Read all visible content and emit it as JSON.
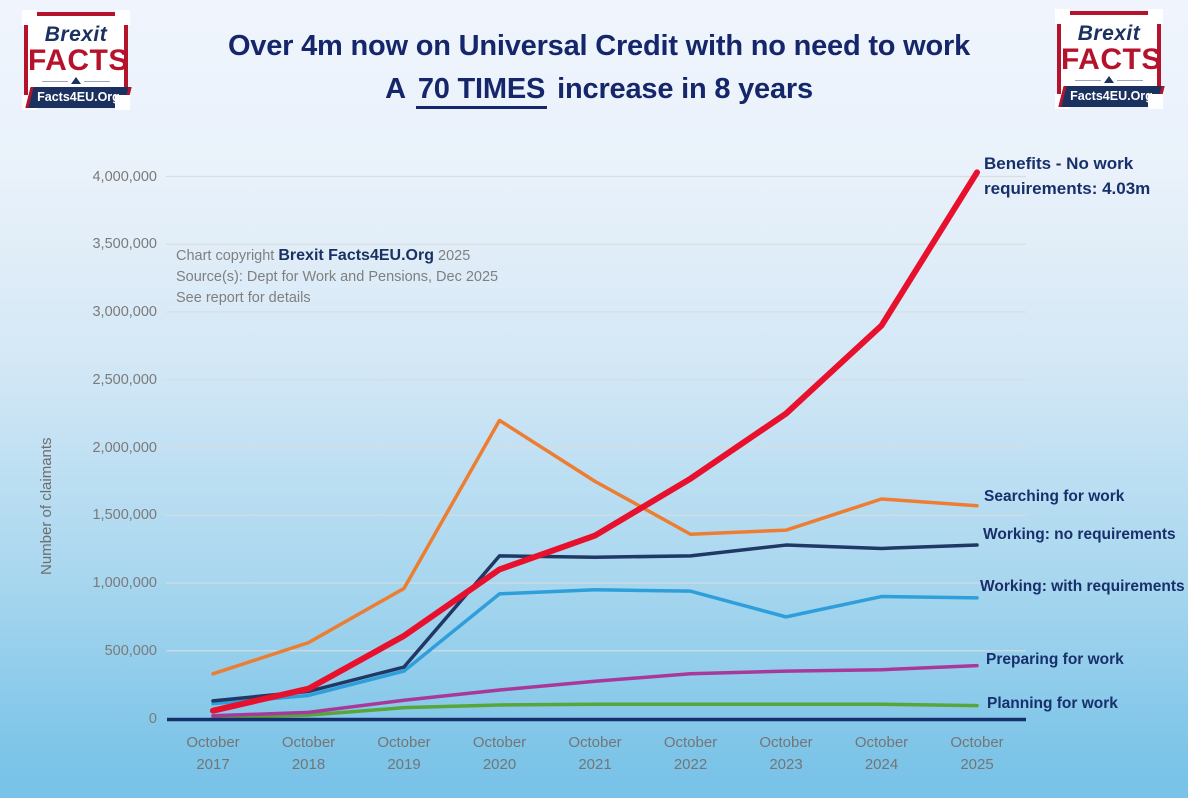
{
  "header": {
    "title_line1": "Over 4m now on Universal Credit with no need to work",
    "title_line2_prefix": "A",
    "title_line2_emph": "70 TIMES",
    "title_line2_suffix": "increase in 8 years"
  },
  "logo": {
    "word1": "Brexit",
    "word2": "FACTS",
    "banner": "Facts4EU.Org"
  },
  "annotation": {
    "copyright_prefix": "Chart copyright",
    "copyright_brand": "Brexit Facts4EU.Org",
    "copyright_year": "2025",
    "source": "Source(s): Dept for Work and Pensions, Dec 2025",
    "note": "See report for details"
  },
  "colors": {
    "title_navy": "#15266b",
    "label_navy": "#17306b",
    "axis_navy": "#17306b",
    "grid_gray": "#d8dce1",
    "tick_gray": "#7a7a7a",
    "logo_red": "#b5122b",
    "logo_navy": "#1b3160"
  },
  "chart_data": {
    "type": "line",
    "title": "Over 4m now on Universal Credit with no need to work — A 70 TIMES increase in 8 years",
    "xlabel": "",
    "ylabel": "Number of claimants",
    "ylim": [
      0,
      4000000
    ],
    "grid": true,
    "legend_position": "right-end-of-lines",
    "categories": [
      "October 2017",
      "October 2018",
      "October 2019",
      "October 2020",
      "October 2021",
      "October 2022",
      "October 2023",
      "October 2024",
      "October 2025"
    ],
    "y_ticks": [
      {
        "value": 0,
        "label": "0"
      },
      {
        "value": 500000,
        "label": "500,000"
      },
      {
        "value": 1000000,
        "label": "1,000,000"
      },
      {
        "value": 1500000,
        "label": "1,500,000"
      },
      {
        "value": 2000000,
        "label": "2,000,000"
      },
      {
        "value": 2500000,
        "label": "2,500,000"
      },
      {
        "value": 3000000,
        "label": "3,000,000"
      },
      {
        "value": 3500000,
        "label": "3,500,000"
      },
      {
        "value": 4000000,
        "label": "4,000,000"
      }
    ],
    "series": [
      {
        "id": "benefits-no-work",
        "name": "Benefits - No work requirements",
        "label": "Benefits - No work requirements: 4.03m",
        "color": "#e8112d",
        "stroke_width": 6,
        "values": [
          58000,
          220000,
          610000,
          1100000,
          1350000,
          1770000,
          2250000,
          2900000,
          4030000
        ]
      },
      {
        "id": "searching",
        "name": "Searching for work",
        "label": "Searching for work",
        "color": "#ed7d31",
        "stroke_width": 3.5,
        "values": [
          330000,
          560000,
          960000,
          2200000,
          1750000,
          1360000,
          1390000,
          1620000,
          1570000
        ]
      },
      {
        "id": "working-no-req",
        "name": "Working: no requirements",
        "label": "Working: no requirements",
        "color": "#1f3864",
        "stroke_width": 3.5,
        "values": [
          130000,
          200000,
          380000,
          1200000,
          1190000,
          1200000,
          1280000,
          1255000,
          1280000
        ]
      },
      {
        "id": "working-with-req",
        "name": "Working: with requirements",
        "label": "Working: with requirements",
        "color": "#2e9fda",
        "stroke_width": 3.5,
        "values": [
          110000,
          170000,
          350000,
          920000,
          950000,
          940000,
          750000,
          900000,
          890000
        ]
      },
      {
        "id": "preparing",
        "name": "Preparing for work",
        "label": "Preparing for work",
        "color": "#a8399b",
        "stroke_width": 3.5,
        "values": [
          20000,
          45000,
          135000,
          210000,
          275000,
          330000,
          350000,
          360000,
          390000
        ]
      },
      {
        "id": "planning",
        "name": "Planning for work",
        "label": "Planning for work",
        "color": "#56a63a",
        "stroke_width": 3.5,
        "values": [
          5000,
          25000,
          80000,
          100000,
          105000,
          105000,
          105000,
          105000,
          95000
        ]
      }
    ]
  }
}
